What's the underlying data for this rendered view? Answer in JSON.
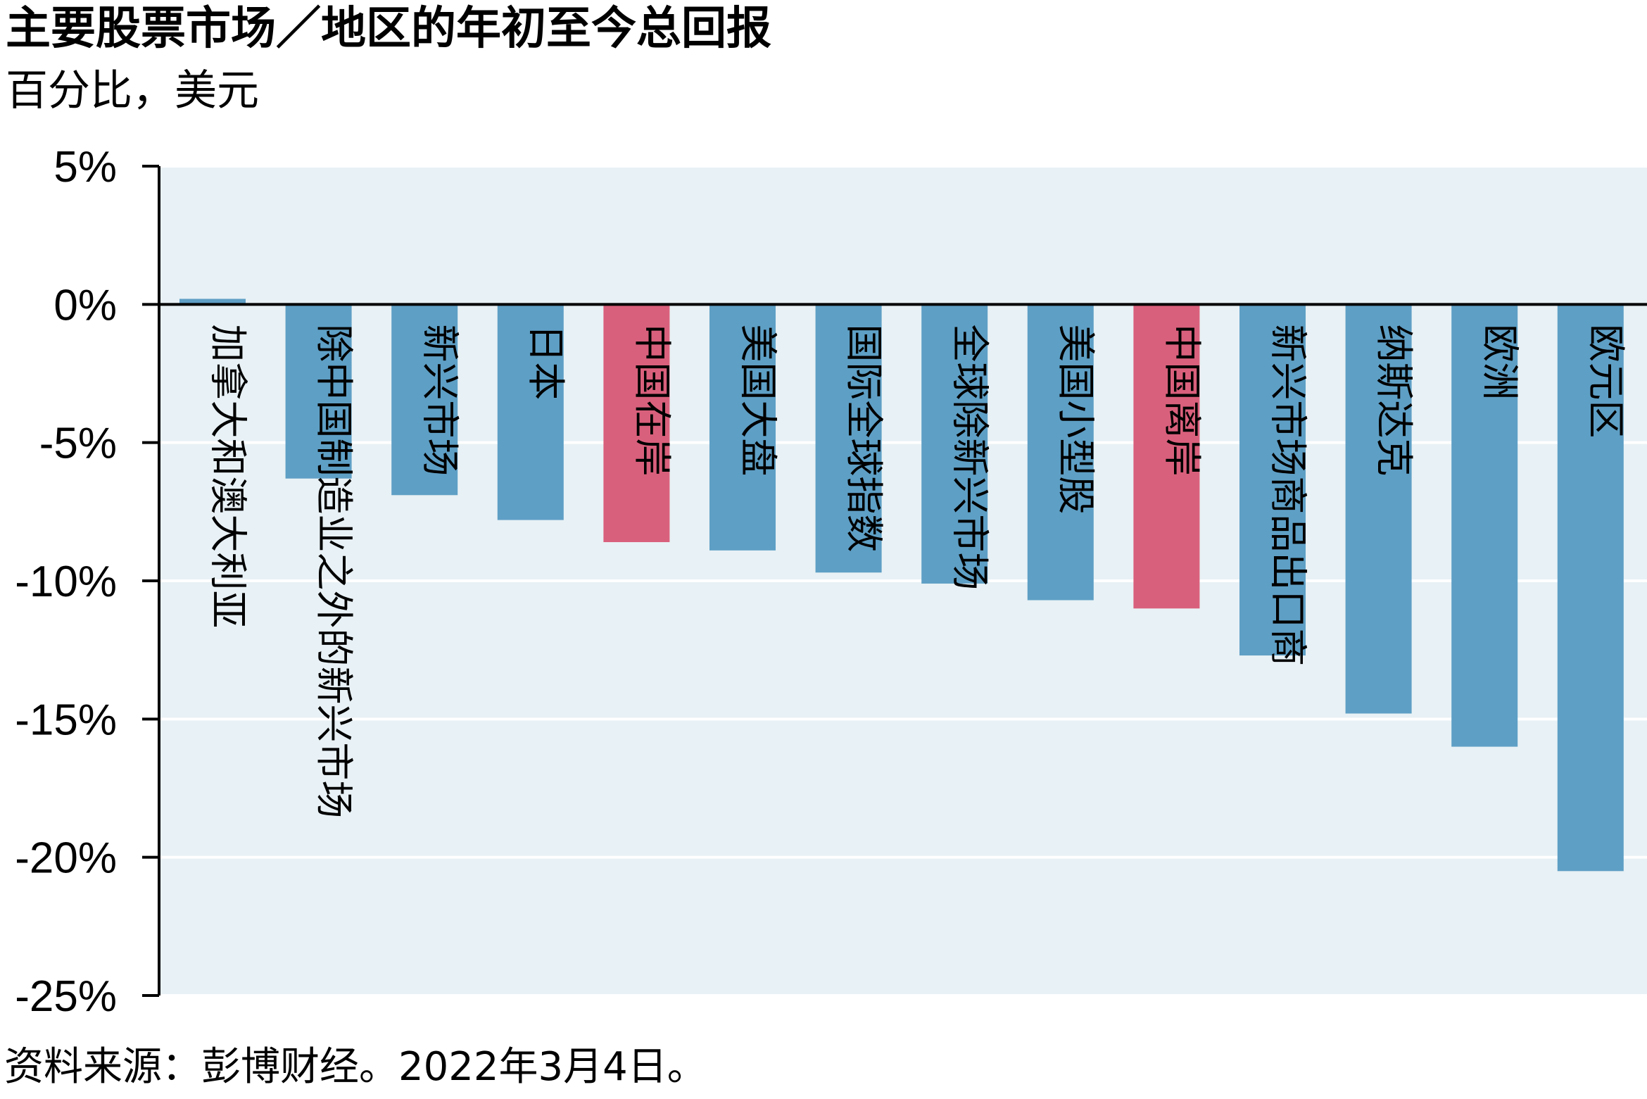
{
  "title": "主要股票市场／地区的年初至今总回报",
  "subtitle": "百分比，美元",
  "source": "资料来源：彭博财经。2022年3月4日。",
  "colors": {
    "plot_background": "#e8f1f5",
    "bar_default": "#5e9fc5",
    "bar_highlight": "#d9607c",
    "gridline": "#ffffff",
    "axis": "#000000"
  },
  "chart_data": {
    "type": "bar",
    "orientation": "vertical",
    "categories": [
      "加拿大和澳大利亚",
      "除中国制造业之外的新兴市场",
      "新兴市场",
      "日本",
      "中国在岸",
      "美国大盘",
      "国际全球指数",
      "全球除新兴市场",
      "美国小型股",
      "中国离岸",
      "新兴市场商品出口商",
      "纳斯达克",
      "欧洲",
      "欧元区"
    ],
    "values": [
      0.2,
      -6.3,
      -6.9,
      -7.8,
      -8.6,
      -8.9,
      -9.7,
      -10.1,
      -10.7,
      -11.0,
      -12.7,
      -14.8,
      -16.0,
      -20.5
    ],
    "highlight": [
      false,
      false,
      false,
      false,
      true,
      false,
      false,
      false,
      false,
      true,
      false,
      false,
      false,
      false
    ],
    "ylim": [
      -25,
      5
    ],
    "yticks": [
      5,
      0,
      -5,
      -10,
      -15,
      -20,
      -25
    ],
    "ytick_labels": [
      "5%",
      "0%",
      "-5%",
      "-10%",
      "-15%",
      "-20%",
      "-25%"
    ],
    "grid": true,
    "legend": "none"
  }
}
